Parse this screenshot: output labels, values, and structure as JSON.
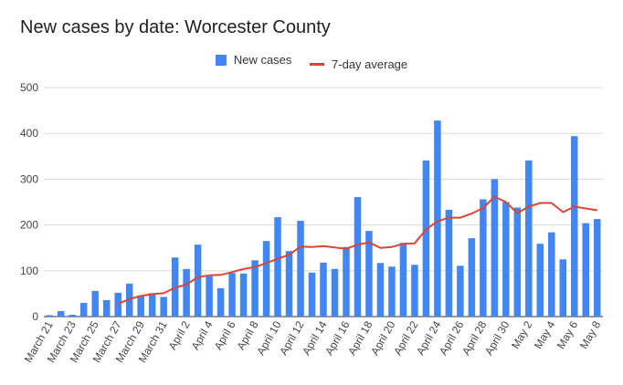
{
  "chart_data": {
    "type": "bar",
    "title": "New cases by date: Worcester County",
    "xlabel": "",
    "ylabel": "",
    "ylim": [
      0,
      500
    ],
    "yticks": [
      0,
      100,
      200,
      300,
      400,
      500
    ],
    "grid": true,
    "legend_position": "top",
    "x_tick_labels": [
      "March 21",
      "March 23",
      "March 25",
      "March 27",
      "March 29",
      "March 31",
      "April 2",
      "April 4",
      "April 6",
      "April 8",
      "April 10",
      "April 12",
      "April 14",
      "April 16",
      "April 18",
      "April 20",
      "April 22",
      "April 24",
      "April 26",
      "April 28",
      "April 30",
      "May 2",
      "May 4",
      "May 6",
      "May 8"
    ],
    "categories": [
      "March 21",
      "March 22",
      "March 23",
      "March 24",
      "March 25",
      "March 26",
      "March 27",
      "March 28",
      "March 29",
      "March 30",
      "March 31",
      "April 1",
      "April 2",
      "April 3",
      "April 4",
      "April 5",
      "April 6",
      "April 7",
      "April 8",
      "April 9",
      "April 10",
      "April 11",
      "April 12",
      "April 13",
      "April 14",
      "April 15",
      "April 16",
      "April 17",
      "April 18",
      "April 19",
      "April 20",
      "April 21",
      "April 22",
      "April 23",
      "April 24",
      "April 25",
      "April 26",
      "April 27",
      "April 28",
      "April 29",
      "April 30",
      "May 1",
      "May 2",
      "May 3",
      "May 4",
      "May 5",
      "May 6",
      "May 7",
      "May 8"
    ],
    "series": [
      {
        "name": "New cases",
        "type": "bar",
        "color": "#4285f4",
        "values": [
          3,
          12,
          4,
          30,
          56,
          36,
          52,
          72,
          46,
          51,
          43,
          129,
          104,
          157,
          88,
          62,
          95,
          94,
          123,
          165,
          217,
          143,
          209,
          96,
          118,
          104,
          152,
          261,
          187,
          117,
          109,
          161,
          113,
          341,
          428,
          233,
          111,
          171,
          256,
          300,
          250,
          238,
          341,
          159,
          184,
          125,
          394,
          204,
          213
        ]
      },
      {
        "name": "7-day average",
        "type": "line",
        "color": "#db4437",
        "values": [
          null,
          null,
          null,
          null,
          null,
          null,
          28,
          38,
          45,
          49,
          51,
          63,
          70,
          86,
          90,
          91,
          97,
          104,
          108,
          117,
          126,
          135,
          153,
          152,
          154,
          151,
          148,
          157,
          162,
          150,
          152,
          159,
          160,
          190,
          208,
          216,
          216,
          225,
          237,
          262,
          250,
          226,
          240,
          248,
          248,
          228,
          240,
          236,
          232
        ]
      }
    ]
  }
}
